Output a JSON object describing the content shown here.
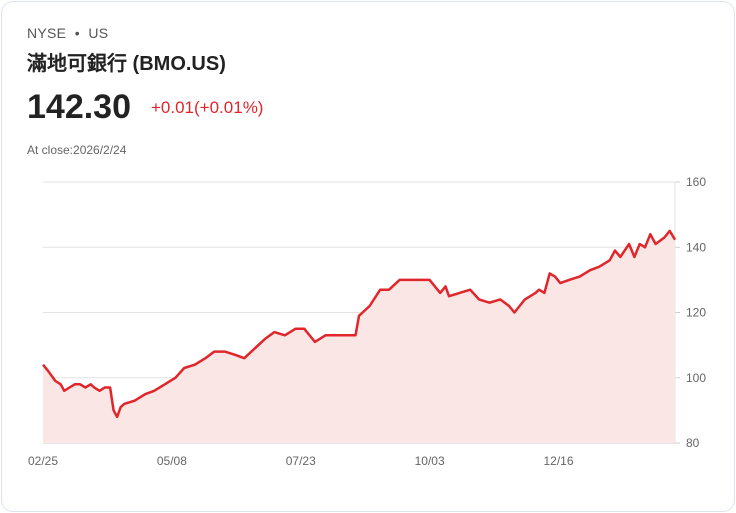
{
  "header": {
    "exchange": "NYSE",
    "separator": "•",
    "market": "US",
    "name": "滿地可銀行 (BMO.US)",
    "price": "142.30",
    "change": "+0.01(+0.01%)",
    "at_close": "At close:2026/2/24"
  },
  "colors": {
    "line": "#e0262b",
    "fill": "#fbe6e6",
    "grid": "#e3e3e3"
  },
  "chart_data": {
    "type": "area",
    "title": "",
    "xlabel": "",
    "ylabel": "",
    "ylim": [
      80,
      160
    ],
    "y_ticks": [
      160,
      140,
      120,
      100,
      80
    ],
    "x_ticks": [
      {
        "label": "02/25",
        "day": 0
      },
      {
        "label": "05/08",
        "day": 73
      },
      {
        "label": "07/23",
        "day": 146
      },
      {
        "label": "10/03",
        "day": 219
      },
      {
        "label": "12/16",
        "day": 292
      }
    ],
    "x_range_days": [
      0,
      358
    ],
    "y_axis": "right",
    "grid": true,
    "points": [
      [
        0,
        104
      ],
      [
        3,
        102
      ],
      [
        7,
        99
      ],
      [
        10,
        98
      ],
      [
        12,
        96
      ],
      [
        15,
        97
      ],
      [
        18,
        98
      ],
      [
        21,
        98
      ],
      [
        24,
        97
      ],
      [
        27,
        98
      ],
      [
        29,
        97
      ],
      [
        32,
        96
      ],
      [
        35,
        97
      ],
      [
        38,
        97
      ],
      [
        40,
        90
      ],
      [
        42,
        88
      ],
      [
        44,
        91
      ],
      [
        46,
        92
      ],
      [
        52,
        93
      ],
      [
        58,
        95
      ],
      [
        63,
        96
      ],
      [
        69,
        98
      ],
      [
        75,
        100
      ],
      [
        80,
        103
      ],
      [
        86,
        104
      ],
      [
        92,
        106
      ],
      [
        97,
        108
      ],
      [
        103,
        108
      ],
      [
        109,
        107
      ],
      [
        114,
        106
      ],
      [
        120,
        109
      ],
      [
        126,
        112
      ],
      [
        131,
        114
      ],
      [
        137,
        113
      ],
      [
        143,
        115
      ],
      [
        148,
        115
      ],
      [
        154,
        111
      ],
      [
        160,
        113
      ],
      [
        165,
        113
      ],
      [
        171,
        113
      ],
      [
        177,
        113
      ],
      [
        179,
        119
      ],
      [
        185,
        122
      ],
      [
        191,
        127
      ],
      [
        196,
        127
      ],
      [
        202,
        130
      ],
      [
        208,
        130
      ],
      [
        213,
        130
      ],
      [
        219,
        130
      ],
      [
        225,
        126
      ],
      [
        228,
        128
      ],
      [
        230,
        125
      ],
      [
        236,
        126
      ],
      [
        242,
        127
      ],
      [
        247,
        124
      ],
      [
        253,
        123
      ],
      [
        259,
        124
      ],
      [
        264,
        122
      ],
      [
        267,
        120
      ],
      [
        273,
        124
      ],
      [
        279,
        126
      ],
      [
        281,
        127
      ],
      [
        284,
        126
      ],
      [
        287,
        132
      ],
      [
        290,
        131
      ],
      [
        293,
        129
      ],
      [
        298,
        130
      ],
      [
        304,
        131
      ],
      [
        310,
        133
      ],
      [
        315,
        134
      ],
      [
        321,
        136
      ],
      [
        324,
        139
      ],
      [
        327,
        137
      ],
      [
        332,
        141
      ],
      [
        335,
        137
      ],
      [
        338,
        141
      ],
      [
        341,
        140
      ],
      [
        344,
        144
      ],
      [
        347,
        141
      ],
      [
        352,
        143
      ],
      [
        355,
        145
      ],
      [
        358,
        142.3
      ]
    ]
  }
}
